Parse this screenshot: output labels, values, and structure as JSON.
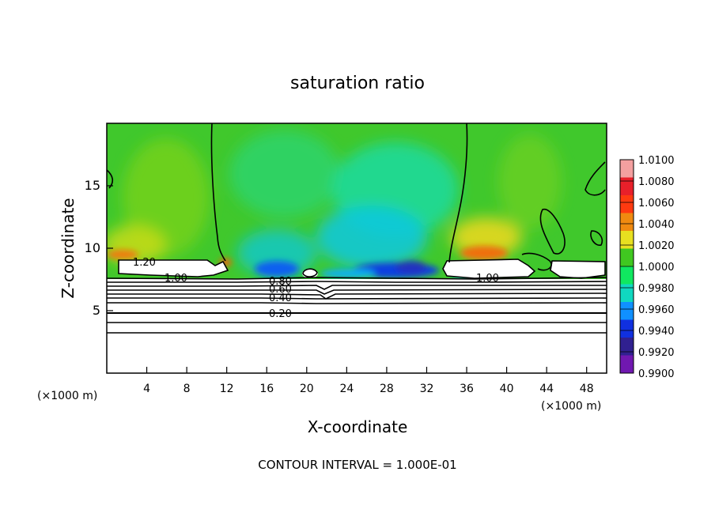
{
  "chart_data": {
    "type": "heatmap",
    "title": "saturation ratio",
    "xlabel": "X-coordinate",
    "ylabel": "Z-coordinate",
    "x_unit": "(×1000 m)",
    "y_unit": "(×1000 m)",
    "xlim": [
      0,
      50
    ],
    "ylim": [
      0,
      20
    ],
    "x_ticks": [
      4,
      8,
      12,
      16,
      20,
      24,
      28,
      32,
      36,
      40,
      44,
      48
    ],
    "y_ticks": [
      5,
      10,
      15
    ],
    "footer": "CONTOUR INTERVAL = 1.000E-01",
    "colorbar": {
      "levels": [
        "1.0100",
        "1.0080",
        "1.0060",
        "1.0040",
        "1.0020",
        "1.0000",
        "0.9980",
        "0.9960",
        "0.9940",
        "0.9920",
        "0.9900"
      ],
      "colors": [
        "#f4a0a0",
        "#e8202a",
        "#ff3a10",
        "#f08a10",
        "#e8e020",
        "#40c820",
        "#10e860",
        "#10d8c0",
        "#1090ff",
        "#1030e0",
        "#302090",
        "#7018b0"
      ]
    },
    "contour_labels": [
      {
        "text": "1.20",
        "x": 2.5,
        "y": 9.1
      },
      {
        "text": "1.00",
        "x": 6.5,
        "y": 7.8
      },
      {
        "text": "1.00",
        "x": 38.5,
        "y": 7.8
      },
      {
        "text": "0.80",
        "x": 18.0,
        "y": 7.5
      },
      {
        "text": "0.60",
        "x": 18.0,
        "y": 6.9
      },
      {
        "text": "0.40",
        "x": 18.0,
        "y": 6.2
      },
      {
        "text": "0.20",
        "x": 18.0,
        "y": 4.8
      }
    ]
  }
}
